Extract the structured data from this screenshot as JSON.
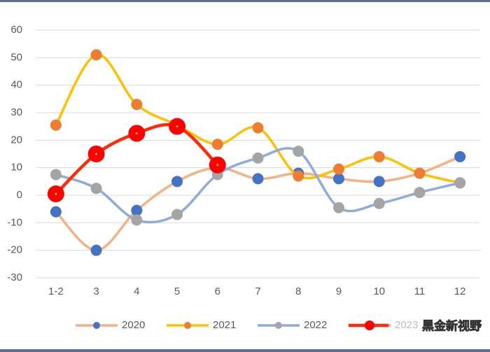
{
  "chart_data": {
    "type": "line",
    "smooth": true,
    "categories": [
      "1-2",
      "3",
      "4",
      "5",
      "6",
      "7",
      "8",
      "9",
      "10",
      "11",
      "12"
    ],
    "series": [
      {
        "name": "2020",
        "color": "#f4b183",
        "marker_color": "#4472c4",
        "values": [
          -6,
          -20,
          -5.5,
          5,
          10,
          6,
          8,
          6,
          5,
          8,
          14
        ]
      },
      {
        "name": "2021",
        "color": "#ffc000",
        "marker_color": "#ed7d31",
        "values": [
          25.5,
          51,
          33,
          25.5,
          18.5,
          24.5,
          7,
          9.5,
          14,
          8,
          4.5
        ]
      },
      {
        "name": "2022",
        "color": "#8faadc",
        "marker_color": "#a5a5a5",
        "values": [
          7.5,
          2.5,
          -9,
          -7,
          7.5,
          13.5,
          16,
          -4.5,
          -3,
          1,
          4.5
        ]
      },
      {
        "name": "2023",
        "color": "#ff2a0a",
        "marker_color": "#ff0000",
        "values": [
          0.5,
          15,
          22.5,
          25,
          11,
          null,
          null,
          null,
          null,
          null,
          null
        ]
      }
    ],
    "ylim": [
      -30,
      60
    ],
    "yticks": [
      -30,
      -20,
      -10,
      0,
      10,
      20,
      30,
      40,
      50,
      60
    ],
    "grid": true,
    "legend": "bottom",
    "watermark": "黑金新视野"
  }
}
